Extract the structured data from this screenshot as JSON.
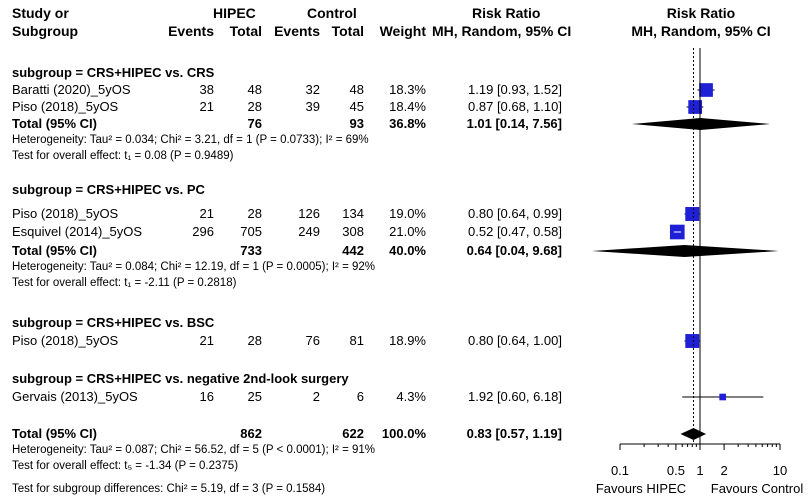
{
  "header": {
    "study_l1": "Study or",
    "study_l2": "Subgroup",
    "hipec": "HIPEC",
    "control": "Control",
    "events": "Events",
    "total": "Total",
    "weight": "Weight",
    "rr_title": "Risk Ratio",
    "rr_method": "MH, Random, 95% CI",
    "plot_title": "Risk Ratio",
    "plot_method": "MH, Random, 95% CI"
  },
  "chart_data": {
    "type": "forest",
    "x_scale": "log",
    "xlim": [
      0.1,
      10
    ],
    "ticks": [
      0.1,
      0.5,
      1,
      2,
      10
    ],
    "tick_labels": [
      "0.1",
      "0.5",
      "1",
      "2",
      "10"
    ],
    "reference_line": 1,
    "favours_left": "Favours HIPEC",
    "favours_right": "Favours Control",
    "subgroups": [
      {
        "title": "subgroup = CRS+HIPEC vs. CRS",
        "studies": [
          {
            "name": "Baratti (2020)_5yOS",
            "e1": "38",
            "t1": "48",
            "e2": "32",
            "t2": "48",
            "weight": "18.3%",
            "ci_text": "1.19 [0.93, 1.52]",
            "rr": 1.19,
            "lo": 0.93,
            "hi": 1.52,
            "w": 18.3
          },
          {
            "name": "Piso (2018)_5yOS",
            "e1": "21",
            "t1": "28",
            "e2": "39",
            "t2": "45",
            "weight": "18.4%",
            "ci_text": "0.87 [0.68, 1.10]",
            "rr": 0.87,
            "lo": 0.68,
            "hi": 1.1,
            "w": 18.4
          }
        ],
        "total": {
          "label": "Total (95% CI)",
          "t1": "76",
          "t2": "93",
          "weight": "36.8%",
          "ci_text": "1.01 [0.14, 7.56]",
          "rr": 1.01,
          "lo": 0.14,
          "hi": 7.56
        },
        "heterogeneity": "Heterogeneity: Tau² = 0.034; Chi² = 3.21, df = 1 (P = 0.0733); I² = 69%",
        "overall": "Test for overall effect: t₁ = 0.08 (P = 0.9489)"
      },
      {
        "title": "subgroup = CRS+HIPEC vs. PC",
        "studies": [
          {
            "name": "Piso (2018)_5yOS",
            "e1": "21",
            "t1": "28",
            "e2": "126",
            "t2": "134",
            "weight": "19.0%",
            "ci_text": "0.80 [0.64, 0.99]",
            "rr": 0.8,
            "lo": 0.64,
            "hi": 0.99,
            "w": 19.0
          },
          {
            "name": "Esquivel (2014)_5yOS",
            "e1": "296",
            "t1": "705",
            "e2": "249",
            "t2": "308",
            "weight": "21.0%",
            "ci_text": "0.52 [0.47, 0.58]",
            "rr": 0.52,
            "lo": 0.47,
            "hi": 0.58,
            "w": 21.0
          }
        ],
        "total": {
          "label": "Total (95% CI)",
          "t1": "733",
          "t2": "442",
          "weight": "40.0%",
          "ci_text": "0.64 [0.04, 9.68]",
          "rr": 0.64,
          "lo": 0.04,
          "hi": 9.68
        },
        "heterogeneity": "Heterogeneity: Tau² = 0.084; Chi² = 12.19, df = 1 (P = 0.0005); I² = 92%",
        "overall": "Test for overall effect: t₁ = -2.11 (P = 0.2818)"
      },
      {
        "title": "subgroup = CRS+HIPEC vs. BSC",
        "studies": [
          {
            "name": "Piso (2018)_5yOS",
            "e1": "21",
            "t1": "28",
            "e2": "76",
            "t2": "81",
            "weight": "18.9%",
            "ci_text": "0.80 [0.64, 1.00]",
            "rr": 0.8,
            "lo": 0.64,
            "hi": 1.0,
            "w": 18.9
          }
        ]
      },
      {
        "title": "subgroup = CRS+HIPEC vs. negative 2nd-look surgery",
        "studies": [
          {
            "name": "Gervais (2013)_5yOS",
            "e1": "16",
            "t1": "25",
            "e2": "2",
            "t2": "6",
            "weight": "4.3%",
            "ci_text": "1.92 [0.60, 6.18]",
            "rr": 1.92,
            "lo": 0.6,
            "hi": 6.18,
            "w": 4.3
          }
        ]
      }
    ],
    "overall_total": {
      "label": "Total (95% CI)",
      "t1": "862",
      "t2": "622",
      "weight": "100.0%",
      "ci_text": "0.83 [0.57, 1.19]",
      "rr": 0.83,
      "lo": 0.57,
      "hi": 1.19
    },
    "overall_heterogeneity": "Heterogeneity: Tau² = 0.087; Chi² = 56.52, df = 5 (P < 0.0001); I² = 91%",
    "overall_effect": "Test for overall effect: t₅ = -1.34 (P = 0.2375)",
    "subgroup_differences": "Test for subgroup differences: Chi² = 5.19, df = 3 (P = 0.1584)",
    "colors": {
      "square": "#1f1fd6",
      "diamond": "#000000",
      "line": "#000000"
    }
  }
}
